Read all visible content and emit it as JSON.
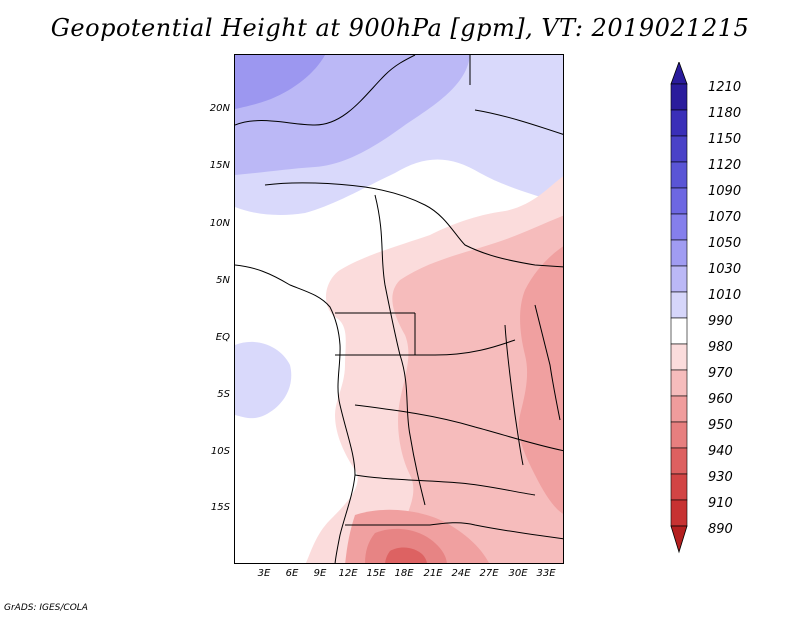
{
  "title": "Geopotential Height at 900hPa [gpm], VT: 2019021215",
  "credit": "GrADS: IGES/COLA",
  "map": {
    "lat_labels": [
      "20N",
      "15N",
      "10N",
      "5N",
      "EQ",
      "5S",
      "10S",
      "15S"
    ],
    "lon_labels": [
      "3E",
      "6E",
      "9E",
      "12E",
      "15E",
      "18E",
      "21E",
      "24E",
      "27E",
      "30E",
      "33E"
    ]
  },
  "colorbar": {
    "levels": [
      "1210",
      "1180",
      "1150",
      "1120",
      "1090",
      "1070",
      "1050",
      "1030",
      "1010",
      "990",
      "980",
      "970",
      "960",
      "950",
      "940",
      "930",
      "910",
      "890"
    ],
    "top_color": "#2a1c9c",
    "bottom_color": "#b41f1f",
    "colors": [
      "#2a1c9c",
      "#3a2fb8",
      "#4a42c8",
      "#5a55d6",
      "#6d67e2",
      "#857fec",
      "#a09cf2",
      "#bbb8f6",
      "#d6d6fa",
      "#ffffff",
      "#fbdcdc",
      "#f6bcbc",
      "#f09c9c",
      "#e77f7f",
      "#dd6060",
      "#d24444",
      "#c73232",
      "#b41f1f"
    ]
  },
  "field_colors": {
    "n1050": "#9c97f0",
    "n1030": "#bbb8f6",
    "n1010": "#d9d9fb",
    "n990": "#ffffff",
    "n980": "#fbdcdc",
    "n970": "#f6bcbc",
    "n960": "#f0a0a0",
    "n950": "#e78484",
    "n940": "#dd6262"
  }
}
